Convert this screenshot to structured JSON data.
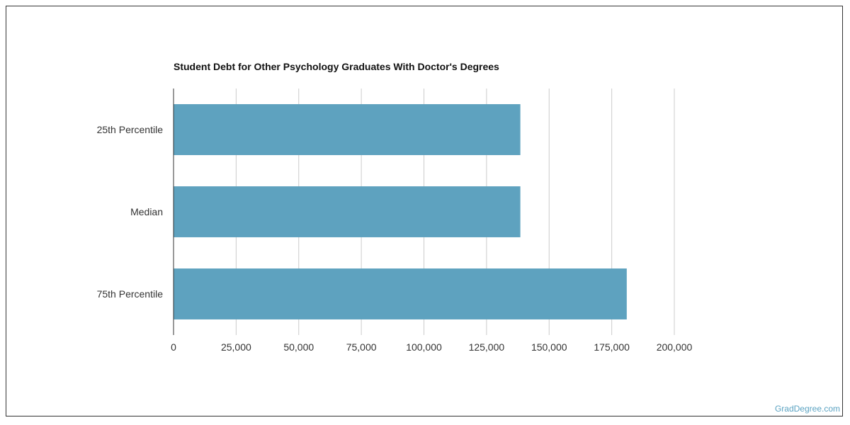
{
  "chart_data": {
    "type": "bar",
    "orientation": "horizontal",
    "title": "Student Debt for Other Psychology Graduates With Doctor's Degrees",
    "categories": [
      "25th Percentile",
      "Median",
      "75th Percentile"
    ],
    "values": [
      138500,
      138500,
      181000
    ],
    "xlim": [
      0,
      200000
    ],
    "xticks": [
      0,
      25000,
      50000,
      75000,
      100000,
      125000,
      150000,
      175000,
      200000
    ],
    "xtick_labels": [
      "0",
      "25,000",
      "50,000",
      "75,000",
      "100,000",
      "125,000",
      "150,000",
      "175,000",
      "200,000"
    ],
    "xlabel": "",
    "ylabel": "",
    "grid": "vertical",
    "bar_color": "#5ea2bf"
  },
  "footer": {
    "brand": "GradDegree.com"
  }
}
